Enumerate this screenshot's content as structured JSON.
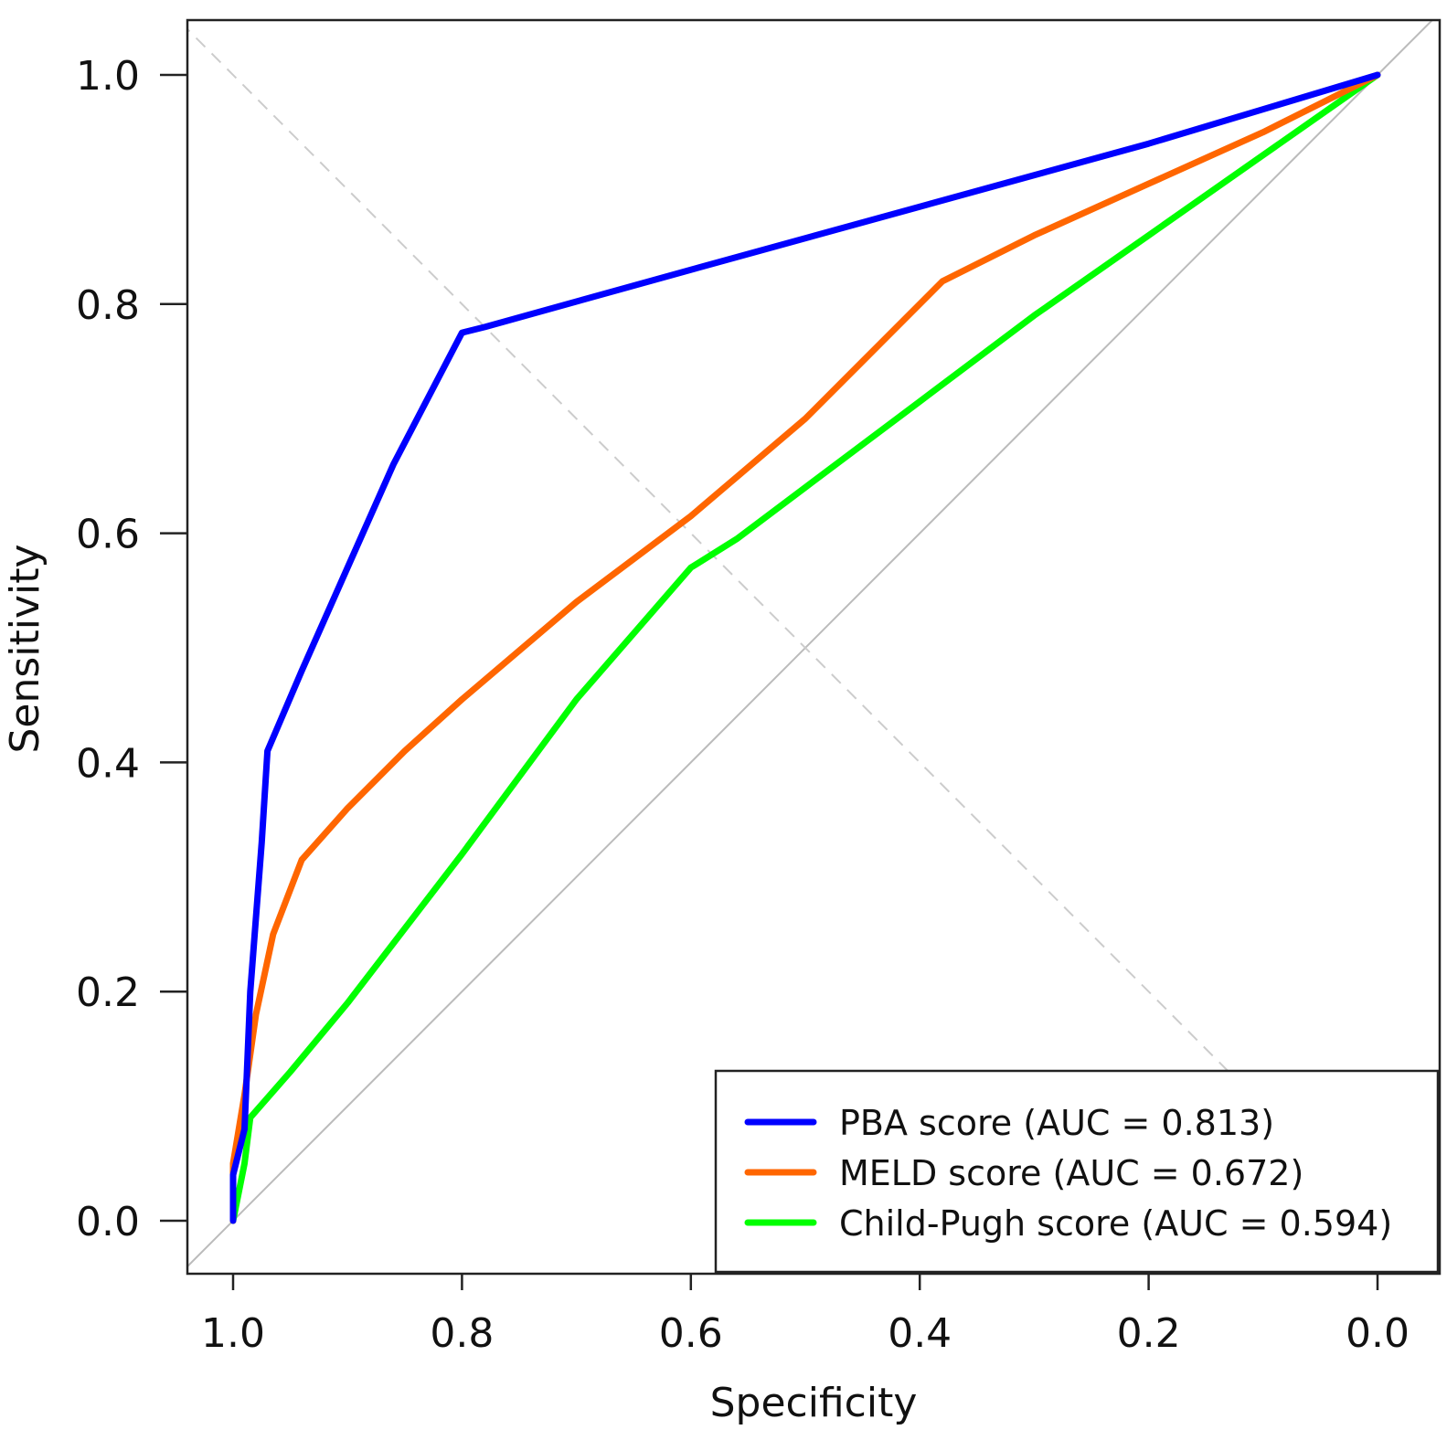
{
  "chart_data": {
    "type": "line",
    "xlabel": "Specificity",
    "ylabel": "Sensitivity",
    "x_reversed": true,
    "xlim": [
      1.0,
      0.0
    ],
    "ylim": [
      0.0,
      1.0
    ],
    "x_ticks": [
      "1.0",
      "0.8",
      "0.6",
      "0.4",
      "0.2",
      "0.0"
    ],
    "x_tick_values": [
      1.0,
      0.8,
      0.6,
      0.4,
      0.2,
      0.0
    ],
    "y_ticks": [
      "0.0",
      "0.2",
      "0.4",
      "0.6",
      "0.8",
      "1.0"
    ],
    "y_tick_values": [
      0.0,
      0.2,
      0.4,
      0.6,
      0.8,
      1.0
    ],
    "grid": false,
    "legend_position": "bottom-right",
    "reference_lines": [
      {
        "style": "solid",
        "color": "#bbbbbb",
        "from": [
          1.0,
          0.0
        ],
        "to": [
          0.0,
          1.0
        ]
      },
      {
        "style": "dashed",
        "color": "#cccccc",
        "from": [
          1.0,
          1.0
        ],
        "to": [
          0.0,
          0.0
        ]
      }
    ],
    "series": [
      {
        "name": "PBA score (AUC = 0.813)",
        "color": "#0000ff",
        "points": [
          [
            1.0,
            0.0
          ],
          [
            1.0,
            0.04
          ],
          [
            0.99,
            0.08
          ],
          [
            0.985,
            0.2
          ],
          [
            0.975,
            0.33
          ],
          [
            0.97,
            0.41
          ],
          [
            0.94,
            0.48
          ],
          [
            0.9,
            0.57
          ],
          [
            0.86,
            0.66
          ],
          [
            0.8,
            0.775
          ],
          [
            0.78,
            0.78
          ],
          [
            0.6,
            0.83
          ],
          [
            0.4,
            0.885
          ],
          [
            0.2,
            0.94
          ],
          [
            0.0,
            1.0
          ]
        ]
      },
      {
        "name": "MELD score (AUC = 0.672)",
        "color": "#ff6600",
        "points": [
          [
            1.0,
            0.0
          ],
          [
            1.0,
            0.05
          ],
          [
            0.99,
            0.11
          ],
          [
            0.98,
            0.18
          ],
          [
            0.965,
            0.25
          ],
          [
            0.94,
            0.315
          ],
          [
            0.9,
            0.36
          ],
          [
            0.85,
            0.41
          ],
          [
            0.8,
            0.455
          ],
          [
            0.7,
            0.54
          ],
          [
            0.6,
            0.615
          ],
          [
            0.5,
            0.7
          ],
          [
            0.45,
            0.75
          ],
          [
            0.38,
            0.82
          ],
          [
            0.3,
            0.86
          ],
          [
            0.2,
            0.905
          ],
          [
            0.1,
            0.95
          ],
          [
            0.0,
            1.0
          ]
        ]
      },
      {
        "name": "Child-Pugh score (AUC = 0.594)",
        "color": "#00ff00",
        "points": [
          [
            1.0,
            0.0
          ],
          [
            0.99,
            0.05
          ],
          [
            0.985,
            0.09
          ],
          [
            0.95,
            0.13
          ],
          [
            0.9,
            0.19
          ],
          [
            0.8,
            0.32
          ],
          [
            0.7,
            0.455
          ],
          [
            0.6,
            0.57
          ],
          [
            0.56,
            0.595
          ],
          [
            0.5,
            0.64
          ],
          [
            0.4,
            0.715
          ],
          [
            0.3,
            0.79
          ],
          [
            0.2,
            0.86
          ],
          [
            0.1,
            0.93
          ],
          [
            0.0,
            1.0
          ]
        ]
      }
    ]
  }
}
